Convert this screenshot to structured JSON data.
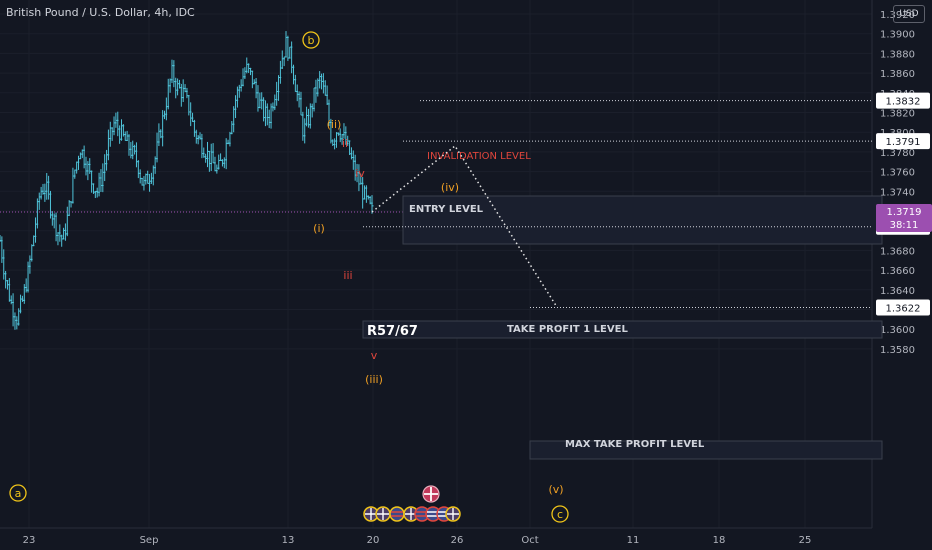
{
  "header": {
    "symbol_title": "British Pound / U.S. Dollar, 4h, IDC",
    "currency": "USD"
  },
  "colors": {
    "background": "#131722",
    "candle": "#4fc3d9",
    "wave_label": "#f0a024",
    "sub_wave": "#e0463c",
    "price_line": "#9c4fb0",
    "text": "#d1d4dc",
    "dotted": "#e6e6e6"
  },
  "price_axis": {
    "min": 1.3572,
    "max": 1.3948,
    "ticks": [
      "1.3580",
      "1.3600",
      "1.3620",
      "1.3640",
      "1.3660",
      "1.3680",
      "1.3700",
      "1.3720",
      "1.3740",
      "1.3760",
      "1.3780",
      "1.3800",
      "1.3820",
      "1.3840",
      "1.3860",
      "1.3880",
      "1.3900",
      "1.3920"
    ]
  },
  "time_axis": {
    "labels": [
      "23",
      "Sep",
      "13",
      "20",
      "26",
      "Oct",
      "11",
      "18",
      "25"
    ]
  },
  "price_tags": [
    {
      "name": "invalidation-price-tag",
      "value": "1.3832",
      "price": 1.3832
    },
    {
      "name": "entry-price-tag",
      "value": "1.3791",
      "price": 1.3791
    },
    {
      "name": "take-profit-1-price-tag",
      "value": "1.3704",
      "price": 1.3704
    },
    {
      "name": "max-take-profit-price-tag",
      "value": "1.3622",
      "price": 1.3622
    }
  ],
  "current_price": {
    "value": "1.3719",
    "countdown": "38:11",
    "price": 1.3719
  },
  "levels": {
    "invalidation": "INVALIDATION LEVEL",
    "entry": "ENTRY LEVEL",
    "take_profit_1": "TAKE PROFIT 1 LEVEL",
    "max_take_profit": "MAX TAKE PROFIT LEVEL"
  },
  "annotations": {
    "fib_label": "R57/67"
  },
  "waves": [
    {
      "name": "wave-label-a",
      "text": "a",
      "circled": true
    },
    {
      "name": "wave-label-b",
      "text": "b",
      "circled": true
    },
    {
      "name": "wave-label-c",
      "text": "c",
      "circled": true
    },
    {
      "name": "wave-label-i",
      "text": "(i)"
    },
    {
      "name": "wave-label-ii",
      "text": "(ii)"
    },
    {
      "name": "wave-label-iii",
      "text": "(iii)"
    },
    {
      "name": "wave-label-iv",
      "text": "(iv)"
    },
    {
      "name": "wave-label-v",
      "text": "(v)"
    },
    {
      "name": "subwave-label-ii",
      "text": "ii"
    },
    {
      "name": "subwave-label-iii",
      "text": "iii"
    },
    {
      "name": "subwave-label-iv",
      "text": "iv"
    },
    {
      "name": "subwave-label-v",
      "text": "v"
    }
  ],
  "event_icons": [
    "uk-flag-icon",
    "uk-flag-icon",
    "us-flag-icon",
    "uk-flag-icon",
    "us-flag-icon",
    "us-flag-icon",
    "us-flag-icon",
    "uk-flag-icon"
  ],
  "chart_data": {
    "type": "candlestick",
    "symbol": "GBPUSD",
    "interval": "4h",
    "ylim": [
      1.3572,
      1.3948
    ],
    "x_ticks": [
      "23",
      "Sep",
      "13",
      "20",
      "26",
      "Oct",
      "11",
      "18",
      "25"
    ],
    "close_path": [
      1.369,
      1.365,
      1.3625,
      1.361,
      1.363,
      1.366,
      1.37,
      1.374,
      1.3745,
      1.372,
      1.37,
      1.369,
      1.372,
      1.376,
      1.3785,
      1.377,
      1.375,
      1.374,
      1.376,
      1.379,
      1.381,
      1.38,
      1.379,
      1.378,
      1.377,
      1.3745,
      1.3755,
      1.377,
      1.38,
      1.383,
      1.386,
      1.3845,
      1.384,
      1.3825,
      1.38,
      1.379,
      1.378,
      1.377,
      1.376,
      1.3775,
      1.38,
      1.383,
      1.385,
      1.3865,
      1.3855,
      1.3835,
      1.382,
      1.3815,
      1.384,
      1.387,
      1.389,
      1.387,
      1.3835,
      1.38,
      1.3815,
      1.384,
      1.3855,
      1.383,
      1.379,
      1.3805,
      1.3795,
      1.378,
      1.376,
      1.3745,
      1.373,
      1.3719
    ],
    "projection_path": [
      {
        "label": "(iii)",
        "price": 1.3719
      },
      {
        "label": "(iv)",
        "price": 1.3786
      },
      {
        "label": "(v)",
        "price": 1.3624
      }
    ]
  }
}
